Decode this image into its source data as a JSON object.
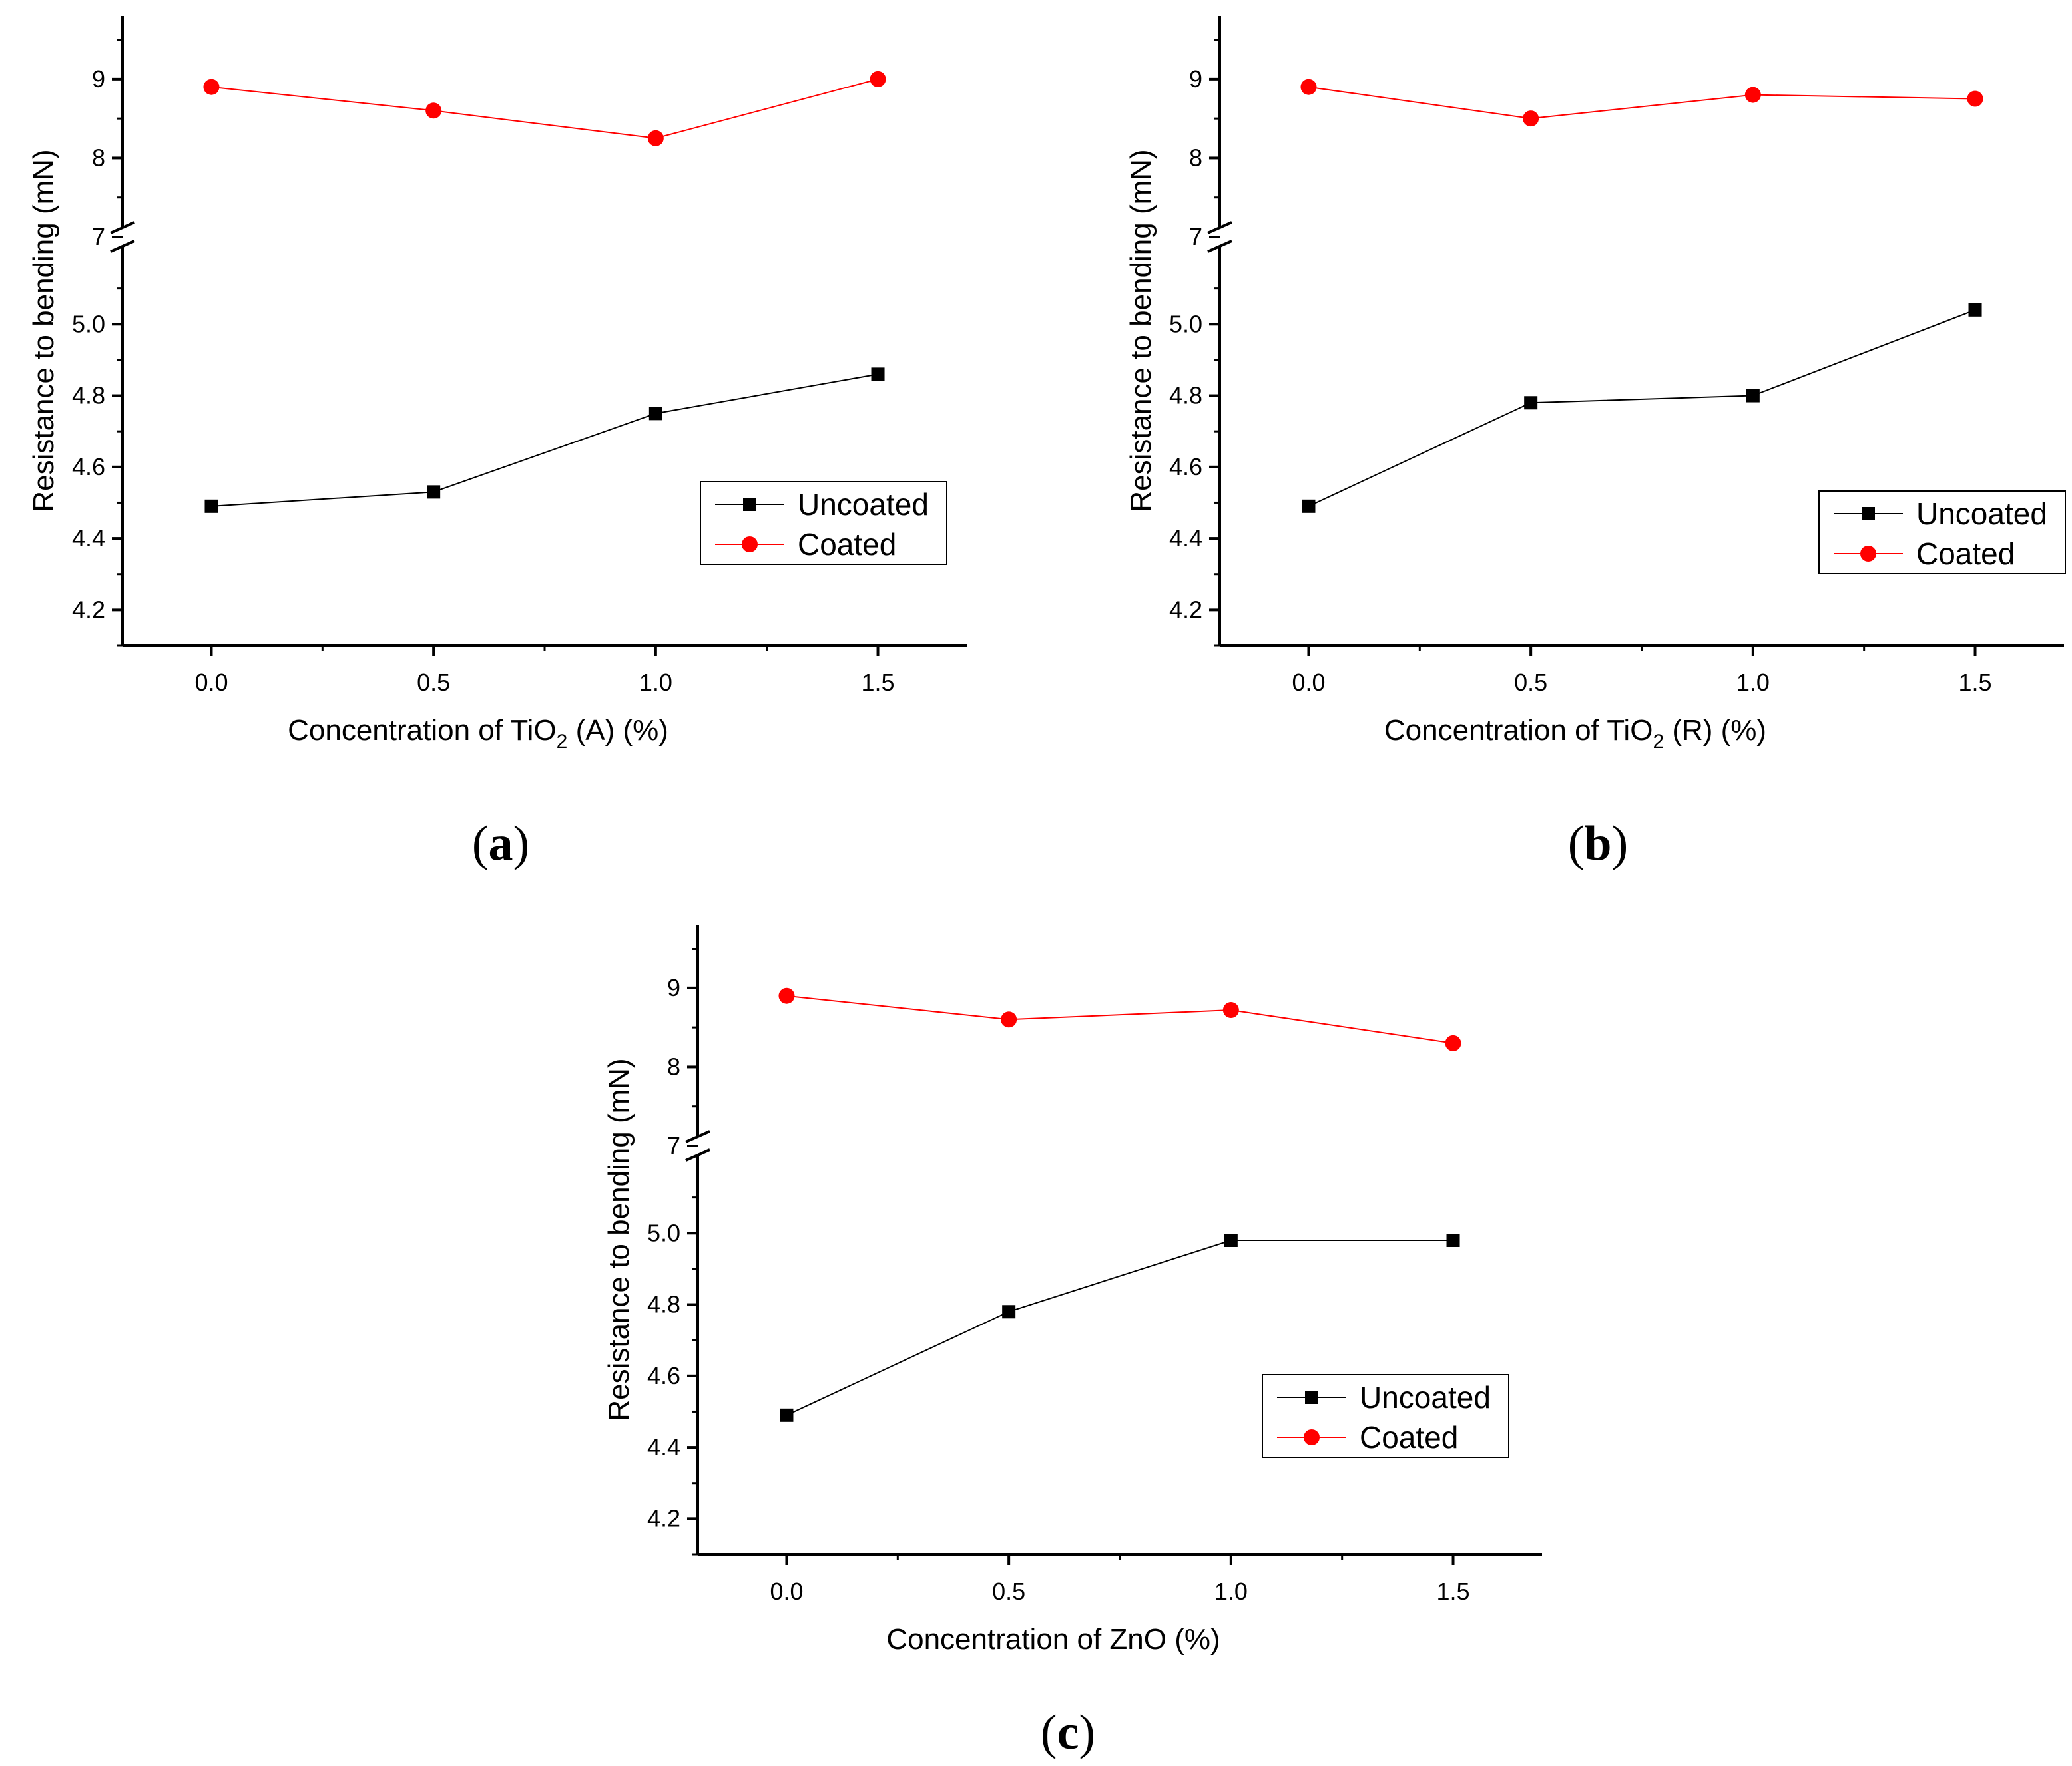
{
  "colors": {
    "uncoated": "#000000",
    "coated": "#ff0000"
  },
  "chart_data": [
    {
      "type": "line",
      "panel_label": "a",
      "xlabel": {
        "pre": "Concentration of TiO",
        "sub": "2",
        "post": " (A) (%)"
      },
      "ylabel": "Resistance to bending (mN)",
      "x": [
        0.0,
        0.5,
        1.0,
        1.5
      ],
      "xticks": [
        "0.0",
        "0.5",
        "1.0",
        "1.5"
      ],
      "xlim": [
        -0.2,
        1.7
      ],
      "y_axis_break": {
        "lower_range": [
          4.1,
          5.2
        ],
        "upper_range": [
          7,
          9.8
        ]
      },
      "yticks_lower": [
        "4.2",
        "4.4",
        "4.6",
        "4.8",
        "5.0"
      ],
      "yticks_upper": [
        "7",
        "8",
        "9"
      ],
      "series": [
        {
          "name": "Uncoated",
          "marker": "square",
          "values": [
            4.49,
            4.53,
            4.75,
            4.86
          ]
        },
        {
          "name": "Coated",
          "marker": "circle",
          "values": [
            8.9,
            8.6,
            8.25,
            9.0
          ]
        }
      ],
      "legend_position": "middle-right"
    },
    {
      "type": "line",
      "panel_label": "b",
      "xlabel": {
        "pre": "Concentration of TiO",
        "sub": "2",
        "post": " (R) (%)"
      },
      "ylabel": "Resistance to bending (mN)",
      "x": [
        0.0,
        0.5,
        1.0,
        1.5
      ],
      "xticks": [
        "0.0",
        "0.5",
        "1.0",
        "1.5"
      ],
      "xlim": [
        -0.2,
        1.7
      ],
      "y_axis_break": {
        "lower_range": [
          4.1,
          5.2
        ],
        "upper_range": [
          7,
          9.8
        ]
      },
      "yticks_lower": [
        "4.2",
        "4.4",
        "4.6",
        "4.8",
        "5.0"
      ],
      "yticks_upper": [
        "7",
        "8",
        "9"
      ],
      "series": [
        {
          "name": "Uncoated",
          "marker": "square",
          "values": [
            4.49,
            4.78,
            4.8,
            5.04
          ]
        },
        {
          "name": "Coated",
          "marker": "circle",
          "values": [
            8.9,
            8.5,
            8.8,
            8.75
          ]
        }
      ],
      "legend_position": "middle-right"
    },
    {
      "type": "line",
      "panel_label": "c",
      "xlabel": {
        "pre": "Concentration of ZnO (%)",
        "sub": "",
        "post": ""
      },
      "ylabel": "Resistance to bending (mN)",
      "x": [
        0.0,
        0.5,
        1.0,
        1.5
      ],
      "xticks": [
        "0.0",
        "0.5",
        "1.0",
        "1.5"
      ],
      "xlim": [
        -0.2,
        1.7
      ],
      "y_axis_break": {
        "lower_range": [
          4.1,
          5.2
        ],
        "upper_range": [
          7,
          9.8
        ]
      },
      "yticks_lower": [
        "4.2",
        "4.4",
        "4.6",
        "4.8",
        "5.0"
      ],
      "yticks_upper": [
        "7",
        "8",
        "9"
      ],
      "series": [
        {
          "name": "Uncoated",
          "marker": "square",
          "values": [
            4.49,
            4.78,
            4.98,
            4.98
          ]
        },
        {
          "name": "Coated",
          "marker": "circle",
          "values": [
            8.9,
            8.6,
            8.72,
            8.3
          ]
        }
      ],
      "legend_position": "lower-right"
    }
  ]
}
